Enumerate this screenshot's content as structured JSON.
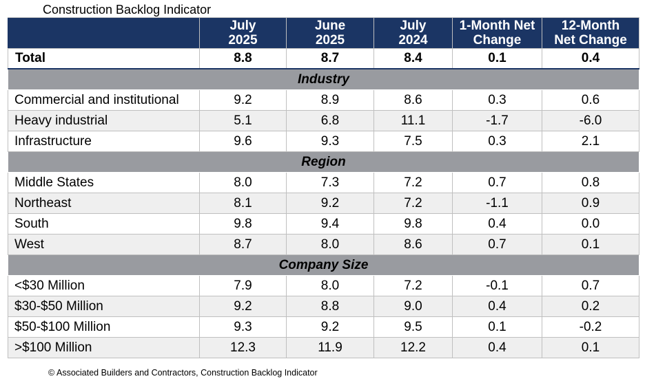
{
  "title": "Construction Backlog Indicator",
  "footer": "© Associated Builders and Contractors, Construction Backlog Indicator",
  "chart_data": {
    "type": "table",
    "title": "Construction Backlog Indicator",
    "columns": [
      {
        "line1": "July",
        "line2": "2025"
      },
      {
        "line1": "June",
        "line2": "2025"
      },
      {
        "line1": "July",
        "line2": "2024"
      },
      {
        "line1": "1-Month Net",
        "line2": "Change"
      },
      {
        "line1": "12-Month",
        "line2": "Net Change"
      }
    ],
    "total": {
      "label": "Total",
      "values": [
        "8.8",
        "8.7",
        "8.4",
        "0.1",
        "0.4"
      ]
    },
    "sections": [
      {
        "name": "Industry",
        "rows": [
          {
            "label": "Commercial and institutional",
            "values": [
              "9.2",
              "8.9",
              "8.6",
              "0.3",
              "0.6"
            ]
          },
          {
            "label": "Heavy industrial",
            "values": [
              "5.1",
              "6.8",
              "11.1",
              "-1.7",
              "-6.0"
            ]
          },
          {
            "label": "Infrastructure",
            "values": [
              "9.6",
              "9.3",
              "7.5",
              "0.3",
              "2.1"
            ]
          }
        ]
      },
      {
        "name": "Region",
        "rows": [
          {
            "label": "Middle States",
            "values": [
              "8.0",
              "7.3",
              "7.2",
              "0.7",
              "0.8"
            ]
          },
          {
            "label": "Northeast",
            "values": [
              "8.1",
              "9.2",
              "7.2",
              "-1.1",
              "0.9"
            ]
          },
          {
            "label": "South",
            "values": [
              "9.8",
              "9.4",
              "9.8",
              "0.4",
              "0.0"
            ]
          },
          {
            "label": "West",
            "values": [
              "8.7",
              "8.0",
              "8.6",
              "0.7",
              "0.1"
            ]
          }
        ]
      },
      {
        "name": "Company Size",
        "rows": [
          {
            "label": "<$30 Million",
            "values": [
              "7.9",
              "8.0",
              "7.2",
              "-0.1",
              "0.7"
            ]
          },
          {
            "label": "$30-$50 Million",
            "values": [
              "9.2",
              "8.8",
              "9.0",
              "0.4",
              "0.2"
            ]
          },
          {
            "label": "$50-$100 Million",
            "values": [
              "9.3",
              "9.2",
              "9.5",
              "0.1",
              "-0.2"
            ]
          },
          {
            "label": ">$100 Million",
            "values": [
              "12.3",
              "11.9",
              "12.2",
              "0.4",
              "0.1"
            ]
          }
        ]
      }
    ]
  },
  "colors": {
    "header_bg": "#1b3564",
    "section_bg": "#999ba0",
    "stripe_bg": "#efefef"
  }
}
